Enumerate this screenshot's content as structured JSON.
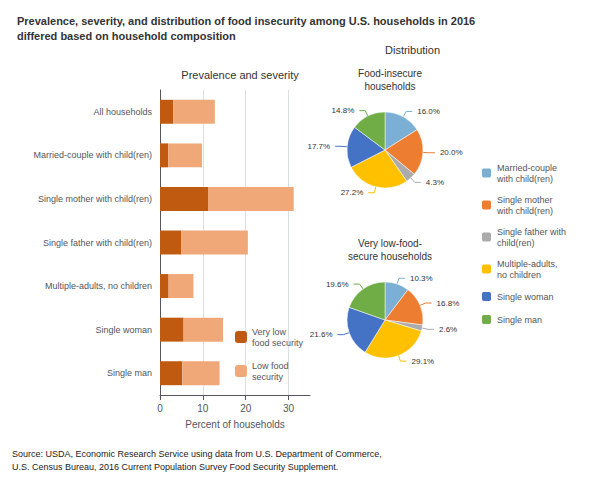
{
  "title": "Prevalence, severity, and distribution of food insecurity among U.S. households in 2016\ndiffered based on household composition",
  "annotations": [
    "Distribution",
    "Source: USDA, Economic Research Service using data from U.S. Department of Commerce,\nU.S. Census Bureau, 2016 Current Population Survey Food Security Supplement."
  ],
  "chart_data": [
    {
      "type": "bar",
      "title": "Prevalence and severity",
      "orientation": "horizontal",
      "stacked": true,
      "categories": [
        "All households",
        "Married-couple with child(ren)",
        "Single mother with child(ren)",
        "Single father with child(ren)",
        "Multiple-adults, no children",
        "Single woman",
        "Single man"
      ],
      "series": [
        {
          "name": "Very low\nfood security",
          "color": "#C05A10",
          "values": [
            3.1,
            1.9,
            11.2,
            5.0,
            2.0,
            5.5,
            5.2
          ]
        },
        {
          "name": "Low food\nsecurity",
          "color": "#F0A878",
          "values": [
            9.7,
            7.9,
            20.0,
            15.5,
            5.8,
            9.2,
            8.7
          ]
        }
      ],
      "xlabel": "Percent of households",
      "xlim": [
        0,
        35
      ],
      "xticks": [
        0,
        10,
        20,
        30
      ],
      "grid": true,
      "legend": "lower right"
    },
    {
      "type": "pie",
      "title": "Food-insecure\nhouseholds",
      "categories": [
        "Married-couple\nwith child(ren)",
        "Single mother\nwith child(ren)",
        "Single father with\nchild(ren)",
        "Multiple-adults,\nno children",
        "Single woman",
        "Single man"
      ],
      "values": [
        16.0,
        20.0,
        4.3,
        27.2,
        17.7,
        14.8
      ],
      "value_labels": [
        "16.0%",
        "20.0%",
        "4.3%",
        "27.2%",
        "17.7%",
        "14.8%"
      ],
      "colors": [
        "#7BAFD4",
        "#ED7D31",
        "#ABABAB",
        "#FFC000",
        "#4472C4",
        "#70AD47"
      ],
      "data_labels": true,
      "legend": "right"
    },
    {
      "type": "pie",
      "title": "Very low-food-\nsecure households",
      "categories": [
        "Married-couple\nwith child(ren)",
        "Single mother\nwith child(ren)",
        "Single father with\nchild(ren)",
        "Multiple-adults,\nno children",
        "Single woman",
        "Single man"
      ],
      "values": [
        10.3,
        16.8,
        2.6,
        29.1,
        21.6,
        19.6
      ],
      "value_labels": [
        "10.3%",
        "16.8%",
        "2.6%",
        "29.1%",
        "21.6%",
        "19.6%"
      ],
      "colors": [
        "#7BAFD4",
        "#ED7D31",
        "#ABABAB",
        "#FFC000",
        "#4472C4",
        "#70AD47"
      ],
      "data_labels": true
    }
  ]
}
